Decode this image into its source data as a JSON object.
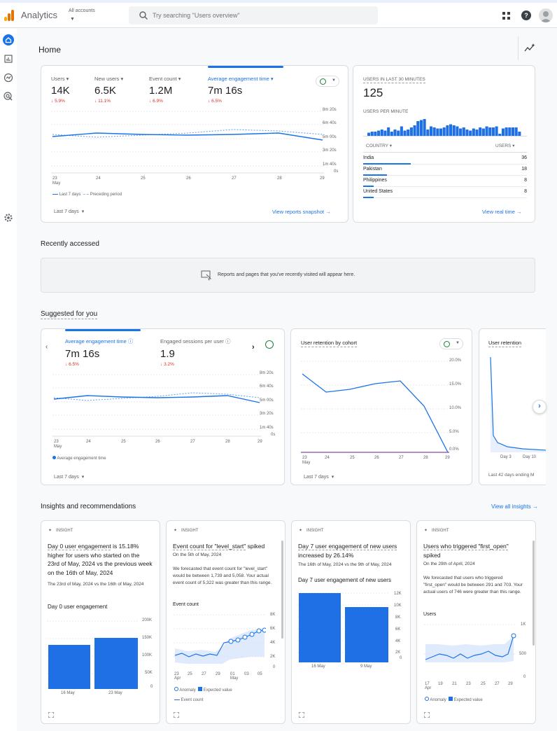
{
  "header": {
    "app_title": "Analytics",
    "accounts_label": "All accounts",
    "search_placeholder": "Try searching \"Users overview\""
  },
  "home": {
    "title": "Home"
  },
  "overview": {
    "metrics": [
      {
        "label": "Users",
        "value": "14K",
        "change": "5.9%"
      },
      {
        "label": "New users",
        "value": "6.5K",
        "change": "11.1%"
      },
      {
        "label": "Event count",
        "value": "1.2M",
        "change": "6.9%"
      },
      {
        "label": "Average engagement time",
        "value": "7m 16s",
        "change": "6.5%"
      }
    ],
    "y_ticks": [
      "8m 20s",
      "6m 40s",
      "5m 00s",
      "3m 20s",
      "1m 40s",
      "0s"
    ],
    "x_ticks": [
      "23",
      "24",
      "25",
      "26",
      "27",
      "28",
      "29"
    ],
    "x_month": "May",
    "legend_current": "Last 7 days",
    "legend_previous": "Preceding period",
    "date_range": "Last 7 days",
    "link": "View reports snapshot"
  },
  "realtime": {
    "title": "USERS IN LAST 30 MINUTES",
    "value": "125",
    "per_minute_label": "USERS PER MINUTE",
    "per_minute": [
      3,
      4,
      4,
      5,
      6,
      5,
      8,
      4,
      6,
      5,
      9,
      5,
      6,
      8,
      10,
      14,
      15,
      16,
      6,
      9,
      8,
      7,
      7,
      8,
      10,
      11,
      10,
      9,
      7,
      8,
      6,
      5,
      7,
      6,
      8,
      7,
      9,
      8,
      8,
      9,
      2,
      7,
      8,
      8,
      8,
      8,
      4
    ],
    "col_country": "COUNTRY",
    "col_users": "USERS",
    "rows": [
      {
        "country": "India",
        "users": "36",
        "share": 1.0
      },
      {
        "country": "Pakistan",
        "users": "18",
        "share": 0.5
      },
      {
        "country": "Philippines",
        "users": "8",
        "share": 0.22
      },
      {
        "country": "United States",
        "users": "8",
        "share": 0.22
      }
    ],
    "link": "View real time"
  },
  "recent": {
    "title": "Recently accessed",
    "empty_text": "Reports and pages that you've recently visited will appear here."
  },
  "suggested": {
    "title": "Suggested for you",
    "card1": {
      "metric1_label": "Average engagement time",
      "metric1_value": "7m 16s",
      "metric1_change": "6.5%",
      "metric2_label": "Engaged sessions per user",
      "metric2_value": "1.9",
      "metric2_change": "3.2%",
      "y_ticks": [
        "8m 20s",
        "6m 40s",
        "5m 00s",
        "3m 20s",
        "1m 40s",
        "0s"
      ],
      "x_ticks": [
        "23",
        "24",
        "25",
        "26",
        "27",
        "28",
        "29"
      ],
      "x_month": "May",
      "legend": "Average engagement time",
      "date_range": "Last 7 days"
    },
    "card2": {
      "title": "User retention by cohort",
      "y_ticks": [
        "20.0%",
        "15.0%",
        "10.0%",
        "5.0%",
        "0.0%"
      ],
      "x_ticks": [
        "23",
        "24",
        "25",
        "26",
        "27",
        "28",
        "29"
      ],
      "x_month": "May",
      "date_range": "Last 7 days"
    },
    "card3": {
      "title": "User retention",
      "x_ticks": [
        "Day 3",
        "Day 10"
      ],
      "footer": "Last 42 days ending M"
    }
  },
  "insights": {
    "title": "Insights and recommendations",
    "view_all": "View all insights",
    "tag": "INSIGHT",
    "cards": [
      {
        "headline_pre": "Day 0 user engagement",
        "headline_post": " is 15.18% higher for users who started on the 23rd of May, 2024 vs the previous week on the 16th of May, 2024",
        "sub": "The 23rd of May, 2024 vs the 16th of May, 2024",
        "chart_title": "Day 0 user engagement",
        "y_ticks": [
          "200K",
          "150K",
          "100K",
          "50K",
          "0"
        ],
        "x_ticks": [
          "16 May",
          "23 May"
        ]
      },
      {
        "headline_pre": "Event count for \"level_start\"",
        "headline_post": " spiked",
        "sub_date": "On the 5th of May, 2024",
        "sub": "We forecasted that event count for \"level_start\" would be between 1,739 and 5,058. Your actual event count of 5,322 was greater than this range.",
        "chart_title": "Event count",
        "y_ticks": [
          "8K",
          "6K",
          "4K",
          "2K",
          "0"
        ],
        "x_ticks": [
          "23",
          "25",
          "27",
          "29",
          "01",
          "03",
          "05"
        ],
        "x_month_1": "Apr",
        "x_month_2": "May",
        "legend_anomaly": "Anomaly",
        "legend_expected": "Expected value",
        "legend_series": "Event count"
      },
      {
        "headline_pre": "Day 7 user engagement of new users",
        "headline_post": " increased by 26.14%",
        "sub": "The 16th of May, 2024 vs the 9th of May, 2024",
        "chart_title": "Day 7 user engagement of new users",
        "y_ticks": [
          "12K",
          "10K",
          "8K",
          "6K",
          "4K",
          "2K",
          "0"
        ],
        "x_ticks": [
          "16 May",
          "9 May"
        ]
      },
      {
        "headline_pre": "Users who triggered \"first_open\"",
        "headline_post": " spiked",
        "sub_date": "On the 29th of April, 2024",
        "sub": "We forecasted that users who triggered \"first_open\" would be between 291 and 703. Your actual users of 746 were greater than this range.",
        "chart_title": "Users",
        "y_ticks": [
          "1K",
          "500",
          "0"
        ],
        "x_ticks": [
          "17",
          "19",
          "21",
          "23",
          "25",
          "27",
          "29"
        ],
        "x_month": "Apr",
        "legend_anomaly": "Anomaly",
        "legend_expected": "Expected value"
      }
    ]
  },
  "colors": {
    "accent": "#1a73e8",
    "negative": "#d93025",
    "positive": "#188038",
    "bar": "#1f6fe5"
  }
}
